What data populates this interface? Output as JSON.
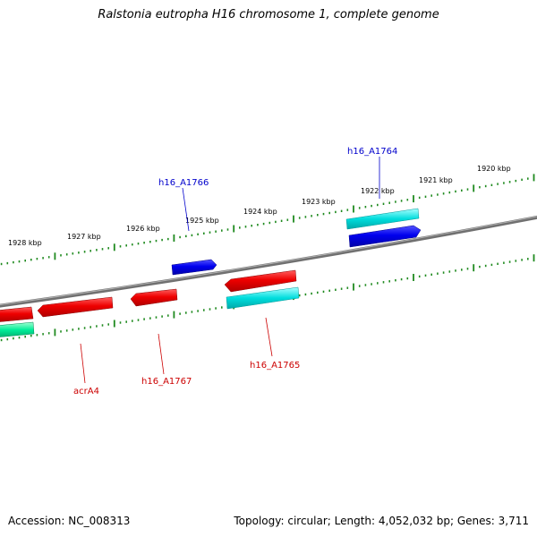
{
  "title": "Ralstonia eutropha H16 chromosome 1, complete genome",
  "footer": {
    "accession": "Accession: NC_008313",
    "summary": "Topology: circular; Length: 4,052,032 bp; Genes: 3,711"
  },
  "colors": {
    "backbone": "#888888",
    "ticks": "#1f8a1f",
    "forward_label": "#0000cc",
    "reverse_label": "#cc0000",
    "cds_forward": "#0000ee",
    "cds_reverse": "#ee0000",
    "feature_cyan": "#00dddd",
    "feature_green": "#00ee99"
  },
  "scale": {
    "ticks": [
      {
        "label": "1920 kbp"
      },
      {
        "label": "1921 kbp"
      },
      {
        "label": "1922 kbp"
      },
      {
        "label": "1923 kbp"
      },
      {
        "label": "1924 kbp"
      },
      {
        "label": "1925 kbp"
      },
      {
        "label": "1926 kbp"
      },
      {
        "label": "1927 kbp"
      },
      {
        "label": "1928 kbp"
      }
    ]
  },
  "gene_labels": [
    {
      "label": "h16_A1764",
      "strand": "forward"
    },
    {
      "label": "h16_A1766",
      "strand": "forward"
    },
    {
      "label": "h16_A1765",
      "strand": "reverse"
    },
    {
      "label": "h16_A1767",
      "strand": "reverse"
    },
    {
      "label": "acrA4",
      "strand": "reverse"
    }
  ]
}
